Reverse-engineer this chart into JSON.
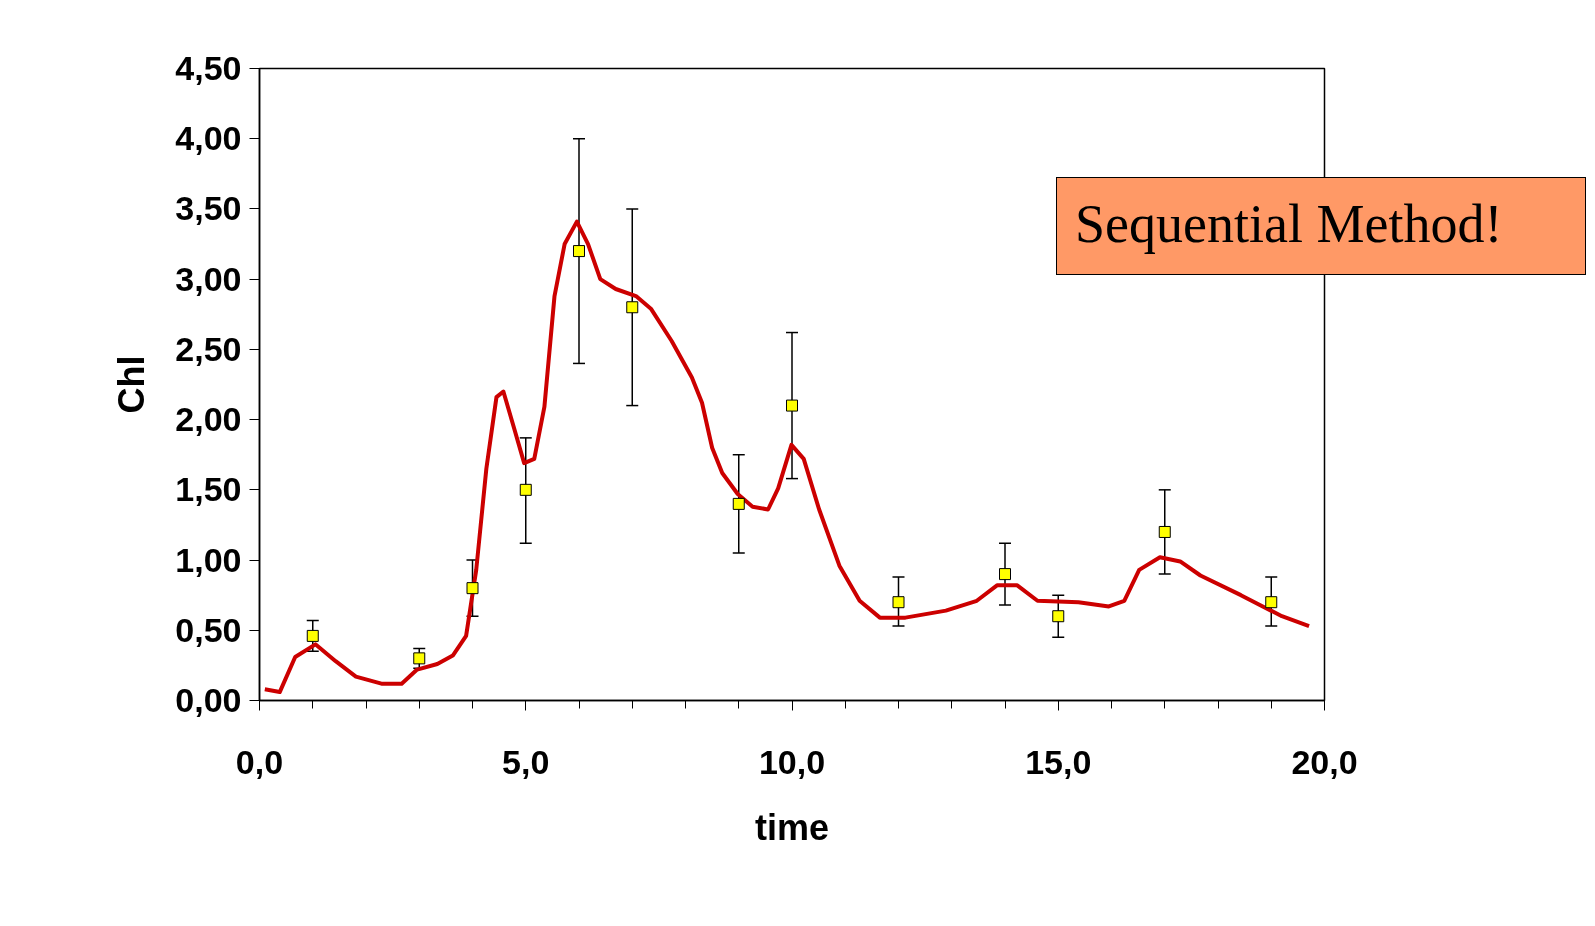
{
  "chart_data": {
    "type": "scatter",
    "xlabel": "time",
    "ylabel": "Chl",
    "xlim": [
      0,
      20
    ],
    "ylim": [
      0,
      4.5
    ],
    "xticks": [
      {
        "value": 0,
        "label": "0,0"
      },
      {
        "value": 5,
        "label": "5,0"
      },
      {
        "value": 10,
        "label": "10,0"
      },
      {
        "value": 15,
        "label": "15,0"
      },
      {
        "value": 20,
        "label": "20,0"
      }
    ],
    "yticks": [
      {
        "value": 0,
        "label": "0,00"
      },
      {
        "value": 0.5,
        "label": "0,50"
      },
      {
        "value": 1,
        "label": "1,00"
      },
      {
        "value": 1.5,
        "label": "1,50"
      },
      {
        "value": 2,
        "label": "2,00"
      },
      {
        "value": 2.5,
        "label": "2,50"
      },
      {
        "value": 3,
        "label": "3,00"
      },
      {
        "value": 3.5,
        "label": "3,50"
      },
      {
        "value": 4,
        "label": "4,00"
      },
      {
        "value": 4.5,
        "label": "4,50"
      }
    ],
    "grid": false,
    "annotations": [
      "Sequential Method!"
    ],
    "series": [
      {
        "marker": "square",
        "color": "#ffff00",
        "x": [
          1,
          3,
          4,
          5,
          6,
          7,
          9,
          10,
          12,
          14,
          15,
          17,
          19
        ],
        "values": [
          0.46,
          0.3,
          0.8,
          1.5,
          3.2,
          2.8,
          1.4,
          2.1,
          0.7,
          0.9,
          0.6,
          1.2,
          0.7
        ],
        "errors": [
          [
            0.35,
            0.57
          ],
          [
            0.23,
            0.37
          ],
          [
            0.6,
            1.0
          ],
          [
            1.12,
            1.87
          ],
          [
            2.4,
            4.0
          ],
          [
            2.1,
            3.5
          ],
          [
            1.05,
            1.75
          ],
          [
            1.58,
            2.62
          ],
          [
            0.53,
            0.88
          ],
          [
            0.68,
            1.12
          ],
          [
            0.45,
            0.75
          ],
          [
            0.9,
            1.5
          ],
          [
            0.53,
            0.88
          ]
        ]
      },
      {
        "type": "line",
        "marker": "none",
        "line_style": "solid",
        "color": "#cc0000",
        "x": [
          0.1,
          0.38,
          0.67,
          1.05,
          1.43,
          1.81,
          2.29,
          2.67,
          2.96,
          3.34,
          3.63,
          3.88,
          4.07,
          4.26,
          4.45,
          4.58,
          4.78,
          4.97,
          5.16,
          5.35,
          5.54,
          5.73,
          5.96,
          6.17,
          6.4,
          6.69,
          7.07,
          7.35,
          7.74,
          8.12,
          8.31,
          8.5,
          8.69,
          8.98,
          9.26,
          9.55,
          9.74,
          9.99,
          10.22,
          10.51,
          10.89,
          11.27,
          11.65,
          12.13,
          12.89,
          13.47,
          13.85,
          14.23,
          14.61,
          15.38,
          15.95,
          16.24,
          16.52,
          16.91,
          17.29,
          17.67,
          18.43,
          19.2,
          19.71
        ],
        "values": [
          0.08,
          0.06,
          0.31,
          0.4,
          0.28,
          0.17,
          0.12,
          0.12,
          0.22,
          0.26,
          0.32,
          0.46,
          0.93,
          1.65,
          2.16,
          2.2,
          1.94,
          1.69,
          1.72,
          2.09,
          2.88,
          3.25,
          3.41,
          3.25,
          3.0,
          2.93,
          2.88,
          2.79,
          2.56,
          2.3,
          2.12,
          1.8,
          1.62,
          1.47,
          1.38,
          1.36,
          1.51,
          1.82,
          1.72,
          1.36,
          0.96,
          0.71,
          0.59,
          0.59,
          0.64,
          0.71,
          0.82,
          0.82,
          0.71,
          0.7,
          0.67,
          0.71,
          0.93,
          1.02,
          0.99,
          0.89,
          0.75,
          0.6,
          0.53
        ]
      }
    ]
  }
}
